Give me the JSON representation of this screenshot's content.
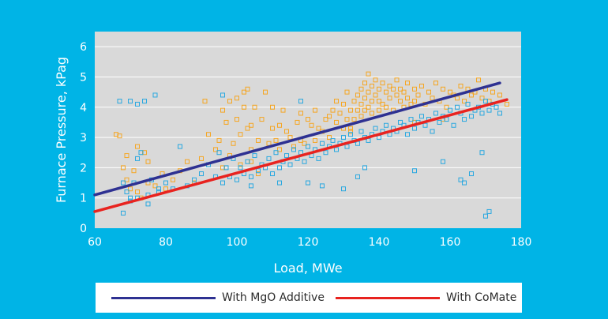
{
  "chart_data": {
    "type": "scatter",
    "xlabel": "Load, MWe",
    "ylabel": "Furnace Pressure, kPag",
    "xlim": [
      60,
      180
    ],
    "ylim": [
      0,
      6.5
    ],
    "xticks": [
      60,
      80,
      100,
      120,
      140,
      160,
      180
    ],
    "yticks": [
      0,
      1,
      2,
      3,
      4,
      5,
      6
    ],
    "grid": "horizontal",
    "legend_position": "bottom",
    "series": [
      {
        "name": "With MgO Additive",
        "color": "#f5a623",
        "marker": "hollow-square",
        "fit": {
          "color": "#2e3192",
          "x": [
            60,
            174
          ],
          "y": [
            1.1,
            4.8
          ]
        },
        "x": [
          66,
          67,
          68,
          69,
          70,
          71,
          72,
          73,
          74,
          75,
          77,
          79,
          82,
          84,
          86,
          88,
          90,
          91,
          92,
          94,
          95,
          96,
          97,
          98,
          99,
          100,
          100,
          101,
          101,
          102,
          102,
          103,
          103,
          104,
          104,
          105,
          106,
          107,
          108,
          109,
          110,
          110,
          111,
          112,
          113,
          114,
          115,
          116,
          117,
          118,
          119,
          120,
          121,
          122,
          122,
          123,
          124,
          125,
          126,
          127,
          128,
          128,
          129,
          130,
          130,
          131,
          131,
          132,
          132,
          133,
          133,
          134,
          134,
          135,
          135,
          135,
          136,
          136,
          136,
          137,
          137,
          137,
          138,
          138,
          138,
          139,
          139,
          140,
          140,
          140,
          141,
          141,
          142,
          142,
          143,
          143,
          144,
          144,
          145,
          145,
          146,
          146,
          147,
          147,
          148,
          148,
          149,
          150,
          150,
          151,
          152,
          153,
          154,
          155,
          156,
          157,
          158,
          159,
          160,
          161,
          162,
          163,
          164,
          165,
          166,
          167,
          168,
          169,
          170,
          171,
          172,
          174,
          176,
          69,
          72,
          75,
          80,
          96,
          98,
          104,
          106,
          112,
          118,
          126,
          132,
          150,
          158
        ],
        "y": [
          3.1,
          3.05,
          2.0,
          1.6,
          1.3,
          1.9,
          1.2,
          1.0,
          2.5,
          1.5,
          1.4,
          1.8,
          1.6,
          1.9,
          2.2,
          1.5,
          2.3,
          4.2,
          3.1,
          2.6,
          2.9,
          3.9,
          3.5,
          4.2,
          2.8,
          3.6,
          4.3,
          2.1,
          3.1,
          4.0,
          4.5,
          3.3,
          4.6,
          3.4,
          2.6,
          4.0,
          2.9,
          3.6,
          4.5,
          2.8,
          3.3,
          4.0,
          2.9,
          3.4,
          3.9,
          3.2,
          3.0,
          2.7,
          3.5,
          3.8,
          2.8,
          3.6,
          3.4,
          3.9,
          2.9,
          3.3,
          3.2,
          3.6,
          3.7,
          3.9,
          4.2,
          3.5,
          3.8,
          4.1,
          3.3,
          3.6,
          4.5,
          3.9,
          3.3,
          4.2,
          3.6,
          4.4,
          3.9,
          4.6,
          4.1,
          3.7,
          4.8,
          4.3,
          3.9,
          5.1,
          4.5,
          4.0,
          4.7,
          4.2,
          3.8,
          4.9,
          4.4,
          4.6,
          4.2,
          3.9,
          4.8,
          4.1,
          4.5,
          4.0,
          4.7,
          4.3,
          4.6,
          3.9,
          4.4,
          4.9,
          4.2,
          4.6,
          4.0,
          4.5,
          4.8,
          4.3,
          4.1,
          4.6,
          4.2,
          4.4,
          4.7,
          4.1,
          4.5,
          4.3,
          4.8,
          4.2,
          4.6,
          4.0,
          4.5,
          4.4,
          4.3,
          4.7,
          4.2,
          4.6,
          4.4,
          4.5,
          4.9,
          4.3,
          4.6,
          4.2,
          4.5,
          4.4,
          4.1,
          2.4,
          2.7,
          2.2,
          1.3,
          2.0,
          2.4,
          2.2,
          1.8,
          2.6,
          2.9,
          3.0,
          3.2,
          3.5,
          3.6
        ],
        "label_series": "orange"
      },
      {
        "name": "With CoMate",
        "color": "#29a8e0",
        "marker": "hollow-square",
        "fit": {
          "color": "#e8231f",
          "x": [
            60,
            176
          ],
          "y": [
            0.55,
            4.25
          ]
        },
        "x": [
          67,
          68,
          69,
          70,
          70,
          71,
          72,
          72,
          73,
          74,
          75,
          76,
          77,
          78,
          80,
          82,
          84,
          86,
          88,
          90,
          92,
          94,
          95,
          96,
          97,
          98,
          99,
          100,
          101,
          102,
          103,
          104,
          105,
          106,
          107,
          108,
          109,
          110,
          111,
          112,
          113,
          114,
          115,
          116,
          117,
          118,
          119,
          120,
          121,
          122,
          123,
          124,
          125,
          126,
          127,
          128,
          129,
          130,
          131,
          132,
          133,
          134,
          135,
          136,
          137,
          138,
          139,
          140,
          141,
          142,
          143,
          144,
          145,
          146,
          147,
          148,
          149,
          150,
          151,
          152,
          153,
          154,
          155,
          156,
          157,
          158,
          159,
          160,
          161,
          162,
          163,
          164,
          165,
          166,
          167,
          168,
          169,
          170,
          171,
          172,
          173,
          174,
          68,
          70,
          72,
          75,
          78,
          96,
          104,
          112,
          118,
          120,
          124,
          130,
          134,
          136,
          150,
          158,
          163,
          164,
          166,
          169,
          170,
          171
        ],
        "y": [
          4.2,
          0.5,
          1.2,
          0.9,
          4.2,
          1.5,
          4.1,
          1.0,
          2.5,
          4.2,
          0.8,
          1.6,
          4.4,
          1.2,
          1.5,
          1.3,
          2.7,
          1.4,
          1.6,
          1.8,
          2.1,
          1.7,
          2.5,
          1.5,
          2.0,
          1.7,
          2.3,
          1.6,
          2.0,
          1.8,
          2.2,
          1.7,
          2.4,
          1.9,
          2.1,
          2.0,
          2.3,
          1.8,
          2.5,
          2.0,
          2.2,
          2.4,
          2.1,
          2.6,
          2.3,
          2.5,
          2.2,
          2.7,
          2.4,
          2.6,
          2.3,
          2.8,
          2.5,
          2.7,
          2.9,
          2.6,
          2.8,
          3.0,
          2.7,
          3.1,
          2.9,
          2.8,
          3.2,
          3.0,
          2.9,
          3.1,
          3.3,
          3.0,
          3.2,
          3.4,
          3.1,
          3.3,
          3.2,
          3.5,
          3.4,
          3.1,
          3.6,
          3.3,
          3.5,
          3.7,
          3.4,
          3.6,
          3.2,
          3.8,
          3.5,
          3.7,
          3.6,
          3.9,
          3.4,
          4.0,
          3.8,
          3.6,
          4.1,
          3.7,
          3.9,
          4.0,
          3.8,
          4.2,
          3.9,
          4.1,
          4.0,
          3.8,
          1.5,
          1.0,
          2.3,
          1.1,
          1.3,
          4.4,
          1.4,
          1.5,
          4.2,
          1.5,
          1.4,
          1.3,
          1.7,
          2.0,
          1.9,
          2.2,
          1.6,
          1.5,
          1.8,
          2.5,
          0.4,
          0.55
        ]
      }
    ]
  },
  "legend": {
    "items": [
      {
        "label": "With MgO Additive",
        "color": "#2e3192"
      },
      {
        "label": "With CoMate",
        "color": "#e8231f"
      }
    ]
  },
  "colors": {
    "background": "#00b4e6",
    "plot_area": "#d9d9d9",
    "gridline": "#ffffff",
    "axis_text": "#ffffff"
  }
}
